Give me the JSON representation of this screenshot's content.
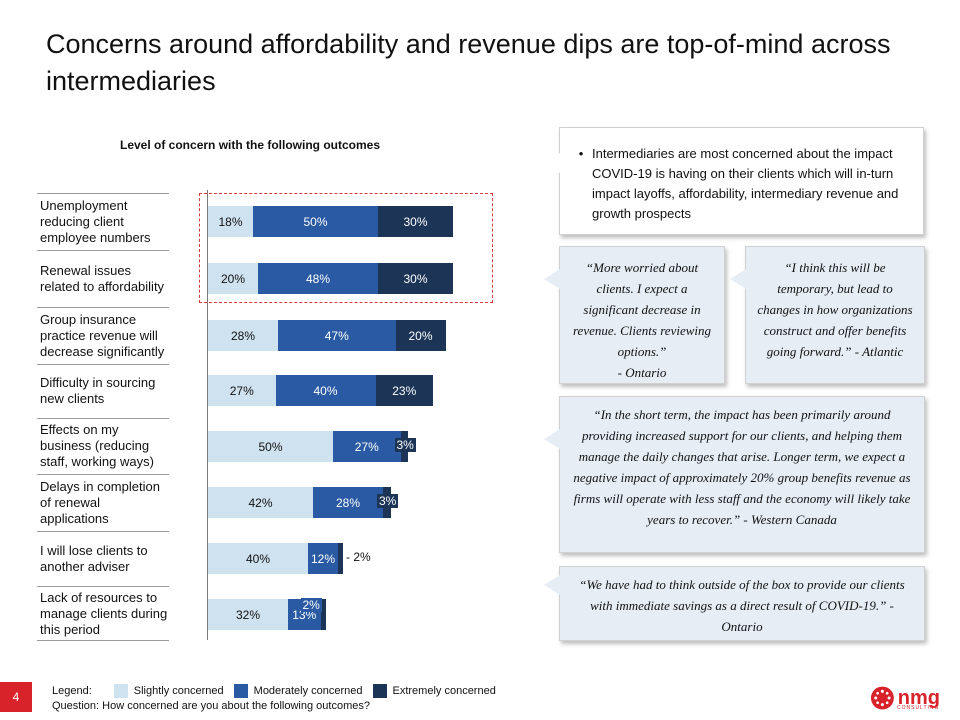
{
  "page": {
    "title": "Concerns around affordability and revenue dips are top-of-mind across intermediaries",
    "page_number": "4"
  },
  "chart_data": {
    "type": "bar",
    "orientation": "horizontal",
    "stacked": true,
    "title": "Level of concern with the following outcomes",
    "categories": [
      "Unemployment reducing client employee numbers",
      "Renewal issues related to affordability",
      "Group insurance practice revenue will decrease significantly",
      "Difficulty in sourcing new clients",
      "Effects on my business (reducing staff, working ways)",
      "Delays in completion of renewal applications",
      "I will lose clients to another adviser",
      "Lack of resources to manage clients during this period"
    ],
    "series": [
      {
        "name": "Slightly concerned",
        "color": "#cfe2f0",
        "values": [
          18,
          20,
          28,
          27,
          50,
          42,
          40,
          32
        ]
      },
      {
        "name": "Moderately concerned",
        "color": "#2a5aa3",
        "values": [
          50,
          48,
          47,
          40,
          27,
          28,
          12,
          13
        ]
      },
      {
        "name": "Extremely concerned",
        "color": "#1c3557",
        "values": [
          30,
          30,
          20,
          23,
          3,
          3,
          2,
          2
        ]
      }
    ],
    "value_suffix": "%",
    "xlim": [
      0,
      100
    ],
    "grid": false,
    "legend_position": "bottom",
    "legend_prefix": "Legend:",
    "highlighted_categories": [
      0,
      1
    ]
  },
  "callouts": {
    "bullet": "Intermediaries are most concerned about the impact COVID-19 is having on their clients which will in-turn impact layoffs, affordability, intermediary revenue and growth prospects",
    "quote_ontario_1": "“More worried about clients. I expect a significant decrease in revenue. Clients reviewing options.”",
    "quote_ontario_1_attr": "- Ontario",
    "quote_atlantic": "“I think this will be temporary, but lead to changes in how organizations construct and offer benefits going forward.” - Atlantic",
    "quote_western": "“In the short term, the impact has been primarily around providing increased support for our clients, and helping them manage the daily changes that arise. Longer term, we expect a negative impact of approximately 20% group benefits revenue as firms will operate with less staff and the economy will likely take years to recover.” - Western Canada",
    "quote_ontario_2": "“We have had to think outside of the box to provide our clients with immediate savings as a direct result of COVID-19.” - Ontario"
  },
  "footer": {
    "question": "Question: How concerned are you about the  following outcomes?",
    "logo_text": "nmg",
    "logo_sub": "CONSULTING"
  },
  "colors": {
    "accent_red": "#d8232a",
    "highlight_border": "#d23b3b"
  }
}
